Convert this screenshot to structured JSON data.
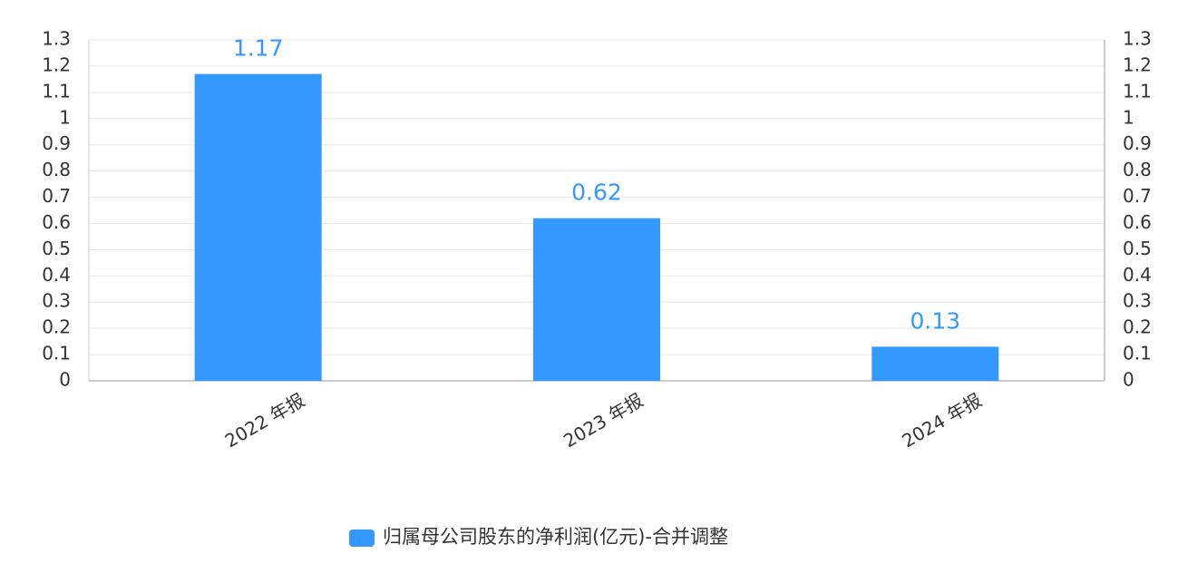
{
  "chart_data": {
    "type": "bar",
    "categories": [
      "2022 年报",
      "2023 年报",
      "2024 年报"
    ],
    "series": [
      {
        "name": "归属母公司股东的净利润(亿元)-合并调整",
        "color": "#3399ff",
        "values": [
          1.17,
          0.62,
          0.13
        ]
      }
    ],
    "ylim": [
      0,
      1.3
    ],
    "yticks": [
      0,
      0.1,
      0.2,
      0.3,
      0.4,
      0.5,
      0.6,
      0.7,
      0.8,
      0.9,
      1,
      1.1,
      1.2,
      1.3
    ],
    "y2lim": [
      0,
      1.3
    ],
    "y2ticks": [
      0,
      0.1,
      0.2,
      0.3,
      0.4,
      0.5,
      0.6,
      0.7,
      0.8,
      0.9,
      1,
      1.1,
      1.2,
      1.3
    ],
    "grid": true,
    "legend": "bottom"
  }
}
